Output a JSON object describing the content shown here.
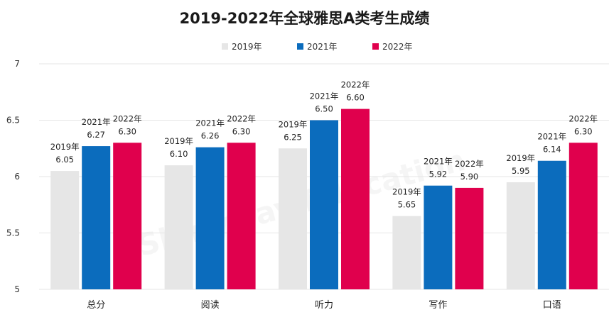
{
  "chart_data": {
    "type": "bar",
    "title": "2019-2022年全球雅思A类考生成绩",
    "categories": [
      "总分",
      "阅读",
      "听力",
      "写作",
      "口语"
    ],
    "series": [
      {
        "name": "2019年",
        "color": "#e6e6e6",
        "values": [
          6.05,
          6.1,
          6.25,
          5.65,
          5.95
        ],
        "labels": [
          "6.05",
          "6.10",
          "6.25",
          "5.65",
          "5.95"
        ]
      },
      {
        "name": "2021年",
        "color": "#0b6cbd",
        "values": [
          6.27,
          6.26,
          6.5,
          5.92,
          6.14
        ],
        "labels": [
          "6.27",
          "6.26",
          "6.50",
          "5.92",
          "6.14"
        ]
      },
      {
        "name": "2022年",
        "color": "#e0004d",
        "values": [
          6.3,
          6.3,
          6.6,
          5.9,
          6.3
        ],
        "labels": [
          "6.30",
          "6.30",
          "6.60",
          "5.90",
          "6.30"
        ]
      }
    ],
    "yticks": [
      "5",
      "5.5",
      "6",
      "6.5",
      "7"
    ],
    "ylim": [
      5,
      7
    ],
    "legend_position": "top-center",
    "grid": true,
    "watermark": "Shinyway Education"
  }
}
